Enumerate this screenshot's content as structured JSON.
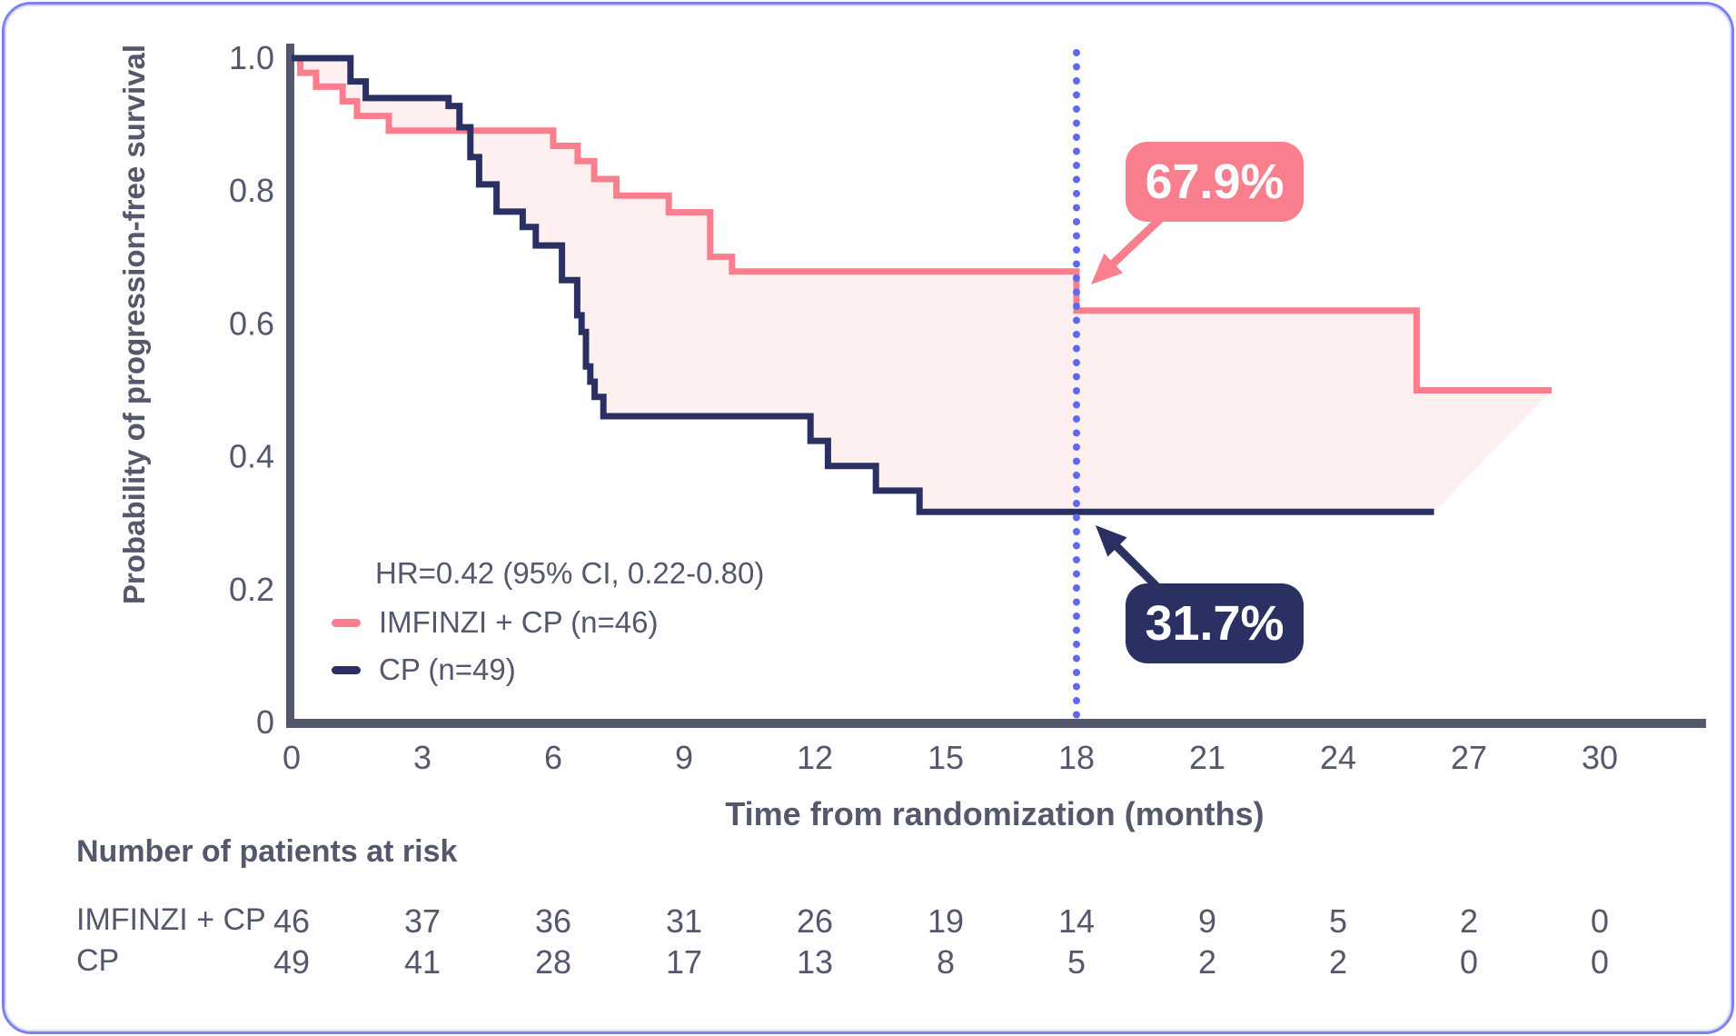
{
  "card": {
    "background": "#FFFFFF",
    "border_color": "#7A82F2",
    "text_color": "#54586C"
  },
  "chart_data": {
    "type": "line",
    "subtype": "kaplan-meier-step",
    "title": "",
    "xlabel": "Time from randomization (months)",
    "ylabel": "Probability of progression-free survival",
    "hr_text": "HR=0.42 (95% CI, 0.22-0.80)",
    "xlim": [
      0,
      32.4
    ],
    "ylim": [
      0,
      1.0
    ],
    "grid": false,
    "legend_position": "inside-lower-left",
    "x_ticks": [
      0,
      3,
      6,
      9,
      12,
      15,
      18,
      21,
      24,
      27,
      30
    ],
    "y_ticks": [
      [
        "1.0",
        1.0
      ],
      [
        "0.8",
        0.8
      ],
      [
        "0.6",
        0.6
      ],
      [
        "0.4",
        0.4
      ],
      [
        "0.2",
        0.2
      ],
      [
        "0",
        0
      ]
    ],
    "axis_color": "#54586C",
    "band_fill_color": "rgba(249,127,142,0.12)",
    "series": [
      {
        "name": "IMFINZI + CP (n=46)",
        "color": "#F97F8E",
        "steps": [
          [
            0,
            1.0
          ],
          [
            0.2,
            0.978
          ],
          [
            0.56,
            0.957
          ],
          [
            1.17,
            0.935
          ],
          [
            1.5,
            0.913
          ],
          [
            2.23,
            0.891
          ],
          [
            6.0,
            0.868
          ],
          [
            6.56,
            0.845
          ],
          [
            6.94,
            0.818
          ],
          [
            7.45,
            0.793
          ],
          [
            8.65,
            0.768
          ],
          [
            9.6,
            0.701
          ],
          [
            10.1,
            0.679
          ],
          [
            18,
            0.62
          ],
          [
            25.8,
            0.5
          ]
        ],
        "end_time": 28.9
      },
      {
        "name": "CP (n=49)",
        "color": "#2B3063",
        "steps": [
          [
            0,
            1.0
          ],
          [
            1.35,
            0.965
          ],
          [
            1.7,
            0.94
          ],
          [
            3.6,
            0.928
          ],
          [
            3.85,
            0.896
          ],
          [
            4.1,
            0.851
          ],
          [
            4.3,
            0.81
          ],
          [
            4.7,
            0.769
          ],
          [
            5.3,
            0.746
          ],
          [
            5.6,
            0.718
          ],
          [
            6.2,
            0.666
          ],
          [
            6.55,
            0.613
          ],
          [
            6.65,
            0.588
          ],
          [
            6.75,
            0.536
          ],
          [
            6.85,
            0.513
          ],
          [
            6.95,
            0.49
          ],
          [
            7.15,
            0.461
          ],
          [
            11.9,
            0.424
          ],
          [
            12.3,
            0.386
          ],
          [
            13.4,
            0.349
          ],
          [
            14.4,
            0.317
          ]
        ],
        "end_time": 26.2
      }
    ],
    "reference_line": {
      "x": 18,
      "style": "dotted",
      "color": "#5D6AF0"
    },
    "annotations": [
      {
        "label": "67.9%",
        "x": 18,
        "y": 0.679,
        "series": "IMFINZI + CP (n=46)",
        "color": "#F97F8E",
        "text_color": "#FFFFFF"
      },
      {
        "label": "31.7%",
        "x": 18,
        "y": 0.317,
        "series": "CP (n=49)",
        "color": "#2B3063",
        "text_color": "#FFFFFF"
      }
    ]
  },
  "risk_table": {
    "title": "Number of patients at risk",
    "rows": [
      {
        "label": "IMFINZI + CP",
        "values": [
          46,
          37,
          36,
          31,
          26,
          19,
          14,
          9,
          5,
          2,
          0
        ]
      },
      {
        "label": "CP",
        "values": [
          49,
          41,
          28,
          17,
          13,
          8,
          5,
          2,
          2,
          0,
          0
        ]
      }
    ]
  }
}
